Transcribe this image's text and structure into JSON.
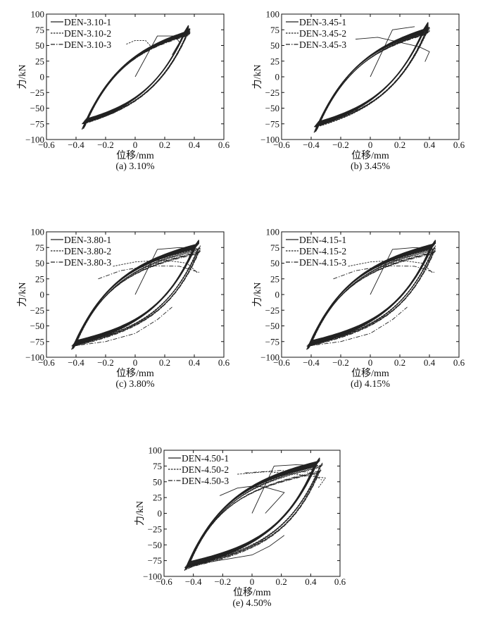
{
  "figure": {
    "xticks": [
      -0.6,
      -0.4,
      -0.2,
      0,
      0.2,
      0.4,
      0.6
    ],
    "yticks": [
      100,
      75,
      50,
      25,
      0,
      -25,
      -50,
      -75,
      -100
    ],
    "line_color": "#222222"
  },
  "chart_data": [
    {
      "type": "line",
      "caption": "(a) 3.10%",
      "xlabel": "位移/mm",
      "ylabel": "力/kN",
      "xlim": [
        -0.6,
        0.6
      ],
      "ylim": [
        -100,
        100
      ],
      "grid": false,
      "legend_position": "top-left",
      "series": [
        {
          "name": "DEN-3.10-1",
          "style": "solid",
          "amplitude_mm": [
            -0.36,
            0.36
          ],
          "peak_force_kN": [
            -84,
            82
          ],
          "extra_paths": [
            [
              [
                0,
                0
              ],
              [
                0.15,
                65
              ],
              [
                0.27,
                65
              ],
              [
                0.3,
                55
              ],
              [
                0.25,
                35
              ]
            ]
          ]
        },
        {
          "name": "DEN-3.10-2",
          "style": "dashed",
          "amplitude_mm": [
            -0.35,
            0.37
          ],
          "peak_force_kN": [
            -83,
            78
          ],
          "extra_paths": [
            [
              [
                -0.06,
                52
              ],
              [
                0,
                58
              ],
              [
                0.07,
                58
              ],
              [
                0.12,
                45
              ]
            ]
          ]
        },
        {
          "name": "DEN-3.10-3",
          "style": "dashdot",
          "amplitude_mm": [
            -0.35,
            0.37
          ],
          "peak_force_kN": [
            -82,
            76
          ],
          "extra_paths": []
        }
      ]
    },
    {
      "type": "line",
      "caption": "(b) 3.45%",
      "xlabel": "位移/mm",
      "ylabel": "力/kN",
      "xlim": [
        -0.6,
        0.6
      ],
      "ylim": [
        -100,
        100
      ],
      "grid": false,
      "legend_position": "top-left",
      "series": [
        {
          "name": "DEN-3.45-1",
          "style": "solid",
          "amplitude_mm": [
            -0.38,
            0.39
          ],
          "peak_force_kN": [
            -89,
            87
          ],
          "extra_paths": [
            [
              [
                0,
                0
              ],
              [
                0.15,
                75
              ],
              [
                0.3,
                80
              ]
            ],
            [
              [
                -0.1,
                60
              ],
              [
                0.05,
                63
              ],
              [
                0.2,
                55
              ],
              [
                0.33,
                48
              ],
              [
                0.4,
                40
              ],
              [
                0.37,
                24
              ]
            ]
          ]
        },
        {
          "name": "DEN-3.45-2",
          "style": "dashed",
          "amplitude_mm": [
            -0.37,
            0.4
          ],
          "peak_force_kN": [
            -88,
            80
          ],
          "extra_paths": []
        },
        {
          "name": "DEN-3.45-3",
          "style": "dashdot",
          "amplitude_mm": [
            -0.37,
            0.39
          ],
          "peak_force_kN": [
            -87,
            78
          ],
          "extra_paths": []
        }
      ]
    },
    {
      "type": "line",
      "caption": "(c) 3.80%",
      "xlabel": "位移/mm",
      "ylabel": "力/kN",
      "xlim": [
        -0.6,
        0.6
      ],
      "ylim": [
        -100,
        100
      ],
      "grid": false,
      "legend_position": "top-left",
      "series": [
        {
          "name": "DEN-3.80-1",
          "style": "solid",
          "amplitude_mm": [
            -0.43,
            0.43
          ],
          "peak_force_kN": [
            -88,
            87
          ],
          "extra_paths": [
            [
              [
                0,
                0
              ],
              [
                0.15,
                72
              ],
              [
                0.3,
                75
              ],
              [
                0.42,
                73
              ]
            ]
          ]
        },
        {
          "name": "DEN-3.80-2",
          "style": "dashed",
          "amplitude_mm": [
            -0.42,
            0.44
          ],
          "peak_force_kN": [
            -87,
            78
          ],
          "extra_paths": [
            [
              [
                -0.15,
                45
              ],
              [
                0,
                52
              ],
              [
                0.2,
                55
              ],
              [
                0.35,
                50
              ],
              [
                0.42,
                35
              ]
            ]
          ]
        },
        {
          "name": "DEN-3.80-3",
          "style": "dashdot",
          "amplitude_mm": [
            -0.42,
            0.44
          ],
          "peak_force_kN": [
            -86,
            72
          ],
          "extra_paths": [
            [
              [
                -0.25,
                25
              ],
              [
                -0.1,
                38
              ],
              [
                0.1,
                46
              ],
              [
                0.3,
                45
              ],
              [
                0.44,
                35
              ]
            ],
            [
              [
                -0.42,
                -82
              ],
              [
                -0.2,
                -75
              ],
              [
                0,
                -62
              ],
              [
                0.15,
                -40
              ],
              [
                0.25,
                -20
              ]
            ]
          ]
        }
      ]
    },
    {
      "type": "line",
      "caption": "(d) 4.15%",
      "xlabel": "位移/mm",
      "ylabel": "力/kN",
      "xlim": [
        -0.6,
        0.6
      ],
      "ylim": [
        -100,
        100
      ],
      "grid": false,
      "legend_position": "top-left",
      "series": [
        {
          "name": "DEN-4.15-1",
          "style": "solid",
          "amplitude_mm": [
            -0.43,
            0.44
          ],
          "peak_force_kN": [
            -88,
            87
          ],
          "extra_paths": [
            [
              [
                0,
                0
              ],
              [
                0.15,
                72
              ],
              [
                0.3,
                75
              ],
              [
                0.42,
                73
              ]
            ]
          ]
        },
        {
          "name": "DEN-4.15-2",
          "style": "dashed",
          "amplitude_mm": [
            -0.42,
            0.44
          ],
          "peak_force_kN": [
            -87,
            78
          ],
          "extra_paths": [
            [
              [
                -0.15,
                45
              ],
              [
                0,
                52
              ],
              [
                0.2,
                55
              ],
              [
                0.35,
                50
              ],
              [
                0.42,
                35
              ]
            ]
          ]
        },
        {
          "name": "DEN-4.15-3",
          "style": "dashdot",
          "amplitude_mm": [
            -0.42,
            0.44
          ],
          "peak_force_kN": [
            -86,
            72
          ],
          "extra_paths": [
            [
              [
                -0.25,
                25
              ],
              [
                -0.1,
                38
              ],
              [
                0.1,
                46
              ],
              [
                0.3,
                45
              ],
              [
                0.44,
                35
              ]
            ],
            [
              [
                -0.42,
                -82
              ],
              [
                -0.2,
                -75
              ],
              [
                0,
                -62
              ],
              [
                0.15,
                -40
              ],
              [
                0.25,
                -20
              ]
            ]
          ]
        }
      ]
    },
    {
      "type": "line",
      "caption": "(e) 4.50%",
      "xlabel": "位移/mm",
      "ylabel": "力/kN",
      "xlim": [
        -0.6,
        0.6
      ],
      "ylim": [
        -100,
        100
      ],
      "grid": false,
      "legend_position": "top-left",
      "series": [
        {
          "name": "DEN-4.50-1",
          "style": "solid",
          "amplitude_mm": [
            -0.46,
            0.46
          ],
          "peak_force_kN": [
            -91,
            88
          ],
          "extra_paths": [
            [
              [
                0,
                0
              ],
              [
                0.15,
                75
              ],
              [
                0.3,
                77
              ],
              [
                0.45,
                76
              ]
            ],
            [
              [
                -0.22,
                28
              ],
              [
                -0.1,
                40
              ],
              [
                0,
                43
              ],
              [
                0.08,
                42
              ],
              [
                0.22,
                33
              ],
              [
                0.09,
                0
              ]
            ],
            [
              [
                -0.44,
                -88
              ],
              [
                -0.36,
                -80
              ],
              [
                0,
                -66
              ],
              [
                0.12,
                -52
              ],
              [
                0.22,
                -35
              ]
            ]
          ]
        },
        {
          "name": "DEN-4.50-2",
          "style": "dashed",
          "amplitude_mm": [
            -0.45,
            0.48
          ],
          "peak_force_kN": [
            -90,
            80
          ],
          "extra_paths": [
            [
              [
                -0.1,
                62
              ],
              [
                0.1,
                66
              ],
              [
                0.3,
                62
              ],
              [
                0.5,
                56
              ],
              [
                0.45,
                40
              ]
            ]
          ]
        },
        {
          "name": "DEN-4.50-3",
          "style": "dashdot",
          "amplitude_mm": [
            -0.45,
            0.47
          ],
          "peak_force_kN": [
            -89,
            70
          ],
          "extra_paths": [
            [
              [
                -0.05,
                64
              ],
              [
                0.2,
                68
              ],
              [
                0.4,
                65
              ],
              [
                0.48,
                52
              ]
            ]
          ]
        }
      ]
    }
  ]
}
